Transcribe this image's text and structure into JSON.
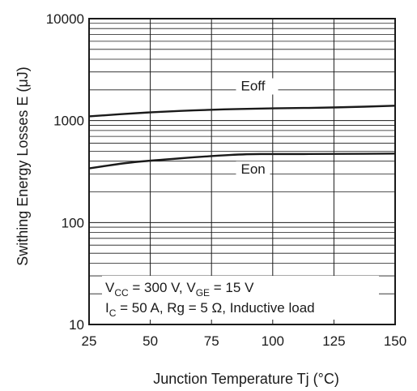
{
  "chart_data": {
    "type": "line",
    "xlabel": "Junction Temperature   Tj  (°C)",
    "ylabel": "Swithing Energy Losses   E  (μJ)",
    "x_ticks": [
      25,
      50,
      75,
      100,
      125,
      150
    ],
    "xlim": [
      25,
      150
    ],
    "y_ticks": [
      10,
      100,
      1000,
      10000
    ],
    "ylim": [
      10,
      10000
    ],
    "y_scale": "log",
    "grid": true,
    "series": [
      {
        "name": "Eoff",
        "x": [
          25,
          50,
          75,
          100,
          125,
          150
        ],
        "values": [
          1100,
          1210,
          1280,
          1320,
          1340,
          1400
        ]
      },
      {
        "name": "Eon",
        "x": [
          25,
          40,
          50,
          75,
          90,
          100,
          125,
          150
        ],
        "values": [
          340,
          385,
          405,
          450,
          470,
          470,
          470,
          475
        ]
      }
    ],
    "annotations": {
      "line1": {
        "v1": "V",
        "v1_sub": "CC",
        "v1_rest": " = 300 V, V",
        "v2_sub": "GE",
        "v2_rest": " = 15 V"
      },
      "line2": {
        "i": "I",
        "i_sub": "C",
        "i_rest": " = 50 A, Rg = 5 Ω, Inductive load"
      }
    },
    "colors": {
      "line": "#1a1a1a",
      "grid": "#1a1a1a",
      "background": "#ffffff"
    }
  }
}
